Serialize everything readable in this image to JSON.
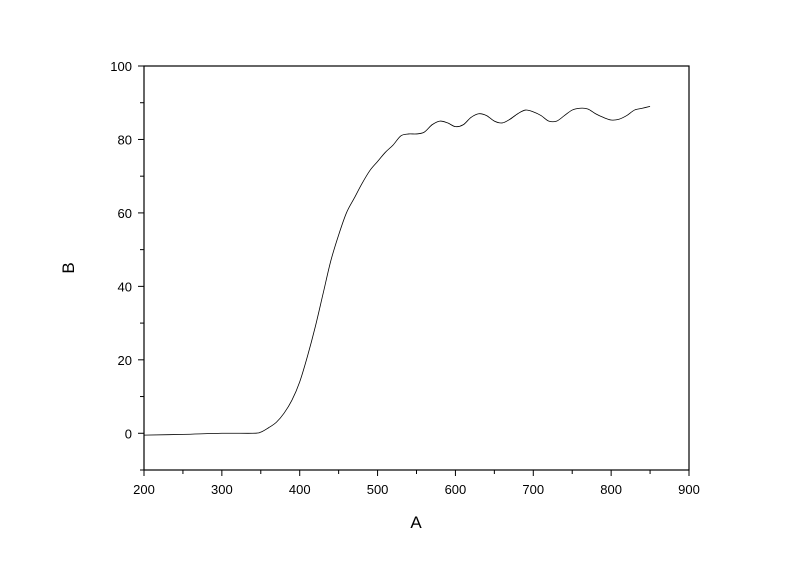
{
  "chart_data": {
    "type": "line",
    "title": "",
    "xlabel": "A",
    "ylabel": "B",
    "xlim": [
      200,
      900
    ],
    "ylim": [
      -10,
      100
    ],
    "xticks": [
      200,
      300,
      400,
      500,
      600,
      700,
      800,
      900
    ],
    "yticks": [
      0,
      20,
      40,
      60,
      80,
      100
    ],
    "grid": false,
    "line_color": "#000000",
    "series": [
      {
        "x": [
          200,
          250,
          300,
          340,
          350,
          360,
          370,
          380,
          390,
          400,
          410,
          420,
          430,
          440,
          450,
          460,
          470,
          480,
          490,
          500,
          510,
          520,
          530,
          540,
          550,
          560,
          570,
          580,
          590,
          600,
          610,
          620,
          630,
          640,
          650,
          660,
          670,
          680,
          690,
          700,
          710,
          720,
          730,
          740,
          750,
          760,
          770,
          780,
          790,
          800,
          810,
          820,
          830,
          840,
          850
        ],
        "y": [
          -0.5,
          -0.3,
          0,
          0,
          0.3,
          1.5,
          3,
          5.5,
          9,
          14,
          21,
          29,
          38,
          47,
          54,
          60,
          64,
          68,
          71.5,
          74,
          76.5,
          78.5,
          81,
          81.5,
          81.5,
          82,
          84,
          85,
          84.5,
          83.5,
          84,
          86,
          87,
          86.5,
          85,
          84.5,
          85.5,
          87,
          88,
          87.5,
          86.5,
          85,
          85,
          86.5,
          88,
          88.5,
          88.3,
          87,
          86,
          85.3,
          85.5,
          86.5,
          88,
          88.5,
          89
        ]
      }
    ]
  }
}
